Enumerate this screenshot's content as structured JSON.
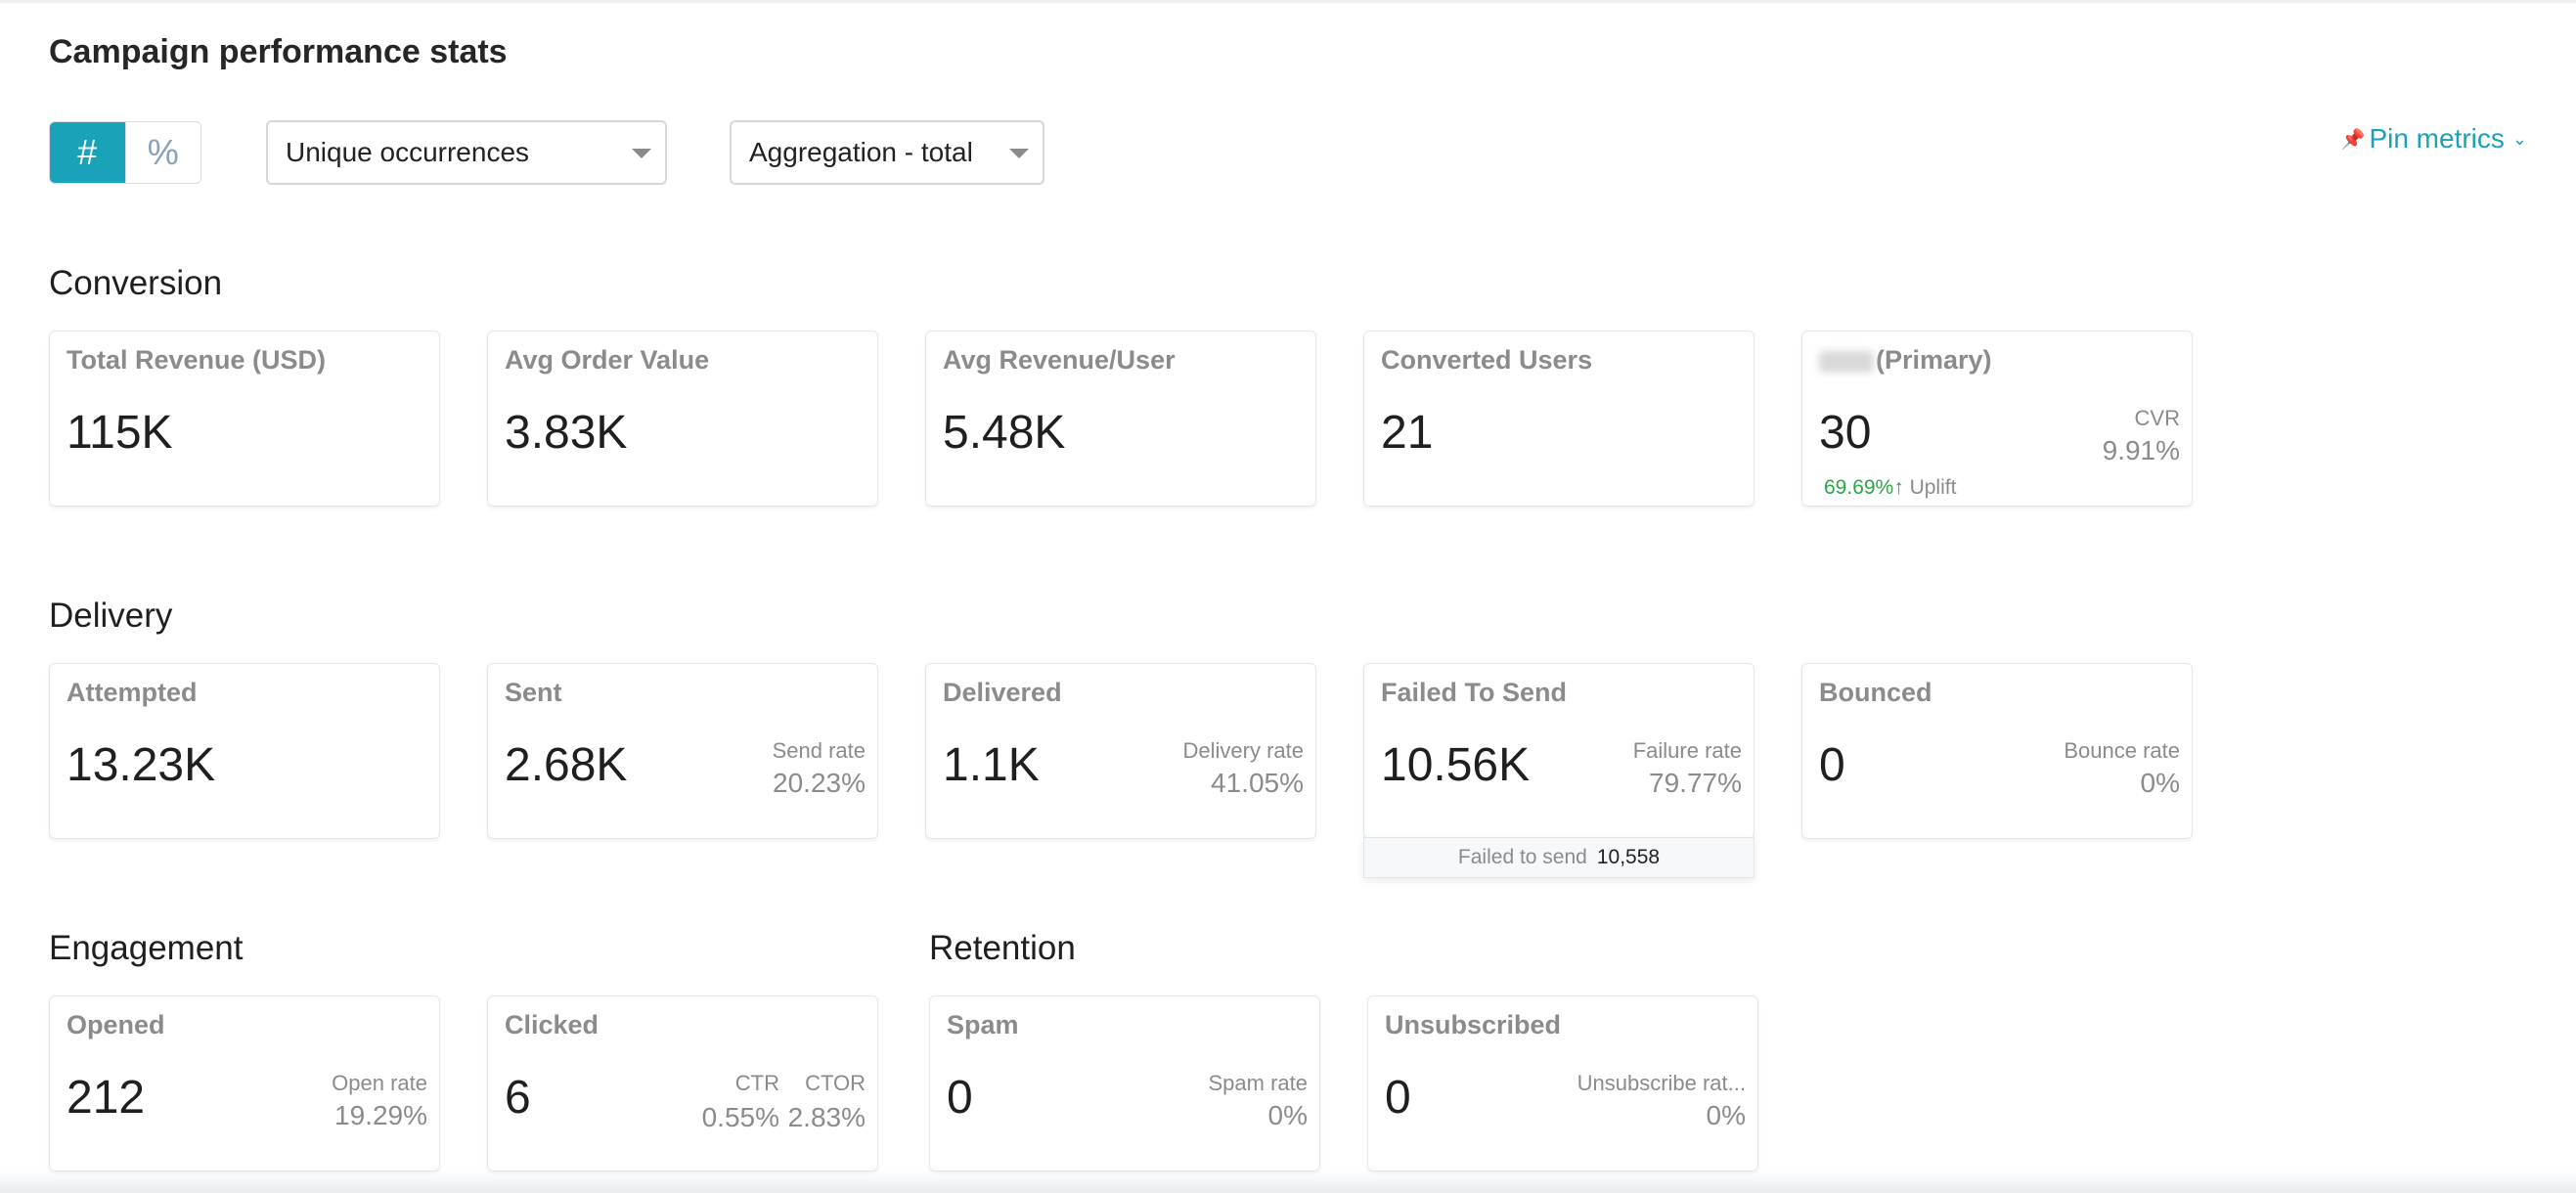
{
  "page": {
    "title": "Campaign performance stats"
  },
  "toolbar": {
    "count_toggle_symbol": "#",
    "percent_toggle_symbol": "%",
    "occurrence_select": "Unique occurrences",
    "aggregation_select": "Aggregation - total",
    "pin_metrics": "Pin metrics",
    "pin_icon": "pin-icon",
    "chevron_icon": "chevron-down-icon",
    "accent_color": "#1aa3b8"
  },
  "sections": {
    "conversion": "Conversion",
    "delivery": "Delivery",
    "engagement": "Engagement",
    "retention": "Retention"
  },
  "conversion": {
    "total_revenue": {
      "label": "Total Revenue (USD)",
      "value": "115K"
    },
    "avg_order_value": {
      "label": "Avg Order Value",
      "value": "3.83K"
    },
    "avg_revenue_user": {
      "label": "Avg Revenue/User",
      "value": "5.48K"
    },
    "converted_users": {
      "label": "Converted Users",
      "value": "21"
    },
    "primary": {
      "label_suffix": "(Primary)",
      "value": "30",
      "cvr_label": "CVR",
      "cvr_value": "9.91%",
      "uplift_value": "69.69%",
      "uplift_arrow": "↑",
      "uplift_label": "Uplift",
      "uplift_color": "#28a745"
    }
  },
  "delivery": {
    "attempted": {
      "label": "Attempted",
      "value": "13.23K"
    },
    "sent": {
      "label": "Sent",
      "value": "2.68K",
      "rate_label": "Send rate",
      "rate_value": "20.23%"
    },
    "delivered": {
      "label": "Delivered",
      "value": "1.1K",
      "rate_label": "Delivery rate",
      "rate_value": "41.05%"
    },
    "failed": {
      "label": "Failed To Send",
      "value": "10.56K",
      "rate_label": "Failure rate",
      "rate_value": "79.77%"
    },
    "bounced": {
      "label": "Bounced",
      "value": "0",
      "rate_label": "Bounce rate",
      "rate_value": "0%"
    }
  },
  "tooltip": {
    "label": "Failed to send",
    "value": "10,558"
  },
  "engagement": {
    "opened": {
      "label": "Opened",
      "value": "212",
      "rate_label": "Open rate",
      "rate_value": "19.29%"
    },
    "clicked": {
      "label": "Clicked",
      "value": "6",
      "ctr_label": "CTR",
      "ctr_value": "0.55%",
      "ctor_label": "CTOR",
      "ctor_value": "2.83%"
    }
  },
  "retention": {
    "spam": {
      "label": "Spam",
      "value": "0",
      "rate_label": "Spam rate",
      "rate_value": "0%"
    },
    "unsubscribed": {
      "label": "Unsubscribed",
      "value": "0",
      "rate_label": "Unsubscribe rat...",
      "rate_value": "0%"
    }
  }
}
